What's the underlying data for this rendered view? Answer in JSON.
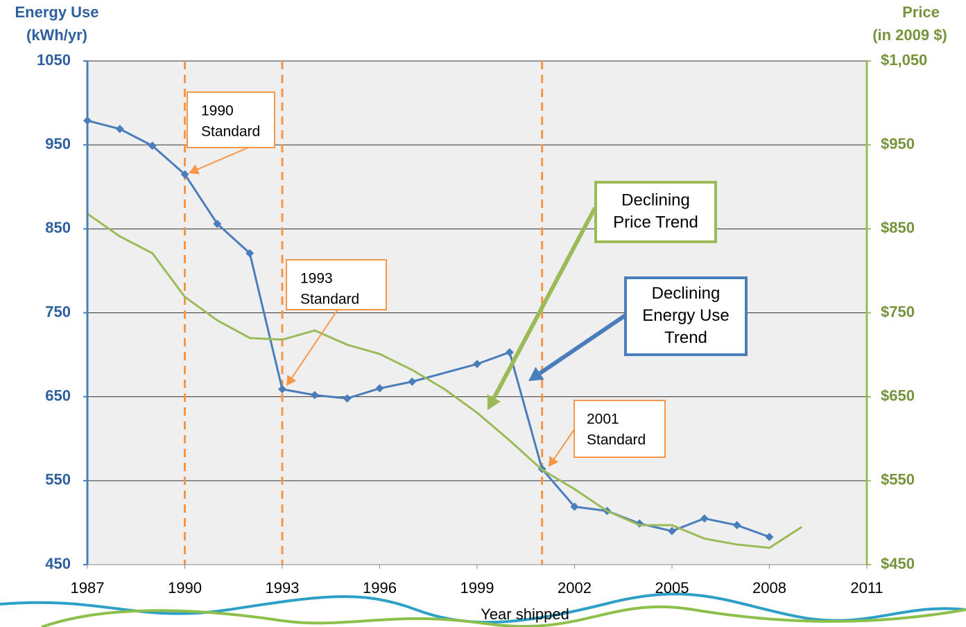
{
  "chart_data": {
    "type": "line",
    "y_label": [
      "Energy Use",
      "(kWh/yr)"
    ],
    "y2_label": [
      "Price",
      "(in 2009 $)"
    ],
    "x_label": "Year shipped",
    "xlim": [
      1987,
      2011
    ],
    "xticks": [
      1987,
      1990,
      1993,
      1996,
      1999,
      2002,
      2005,
      2008,
      2011
    ],
    "ylim": [
      450,
      1050
    ],
    "yticks": [
      450,
      550,
      650,
      750,
      850,
      950,
      1050
    ],
    "y2lim": [
      450,
      1050
    ],
    "y2ticks": [
      {
        "value": 450,
        "label": "$450"
      },
      {
        "value": 550,
        "label": "$550"
      },
      {
        "value": 650,
        "label": "$650"
      },
      {
        "value": 750,
        "label": "$750"
      },
      {
        "value": 850,
        "label": "$850"
      },
      {
        "value": 950,
        "label": "$950"
      },
      {
        "value": 1050,
        "label": "$1,050"
      }
    ],
    "grid": true,
    "series": [
      {
        "color": "#4a7ebb",
        "markers": true,
        "x": [
          1987,
          1988,
          1989,
          1990,
          1991,
          1992,
          1993,
          1994,
          1995,
          1996,
          1997,
          1999,
          2000,
          2001,
          2002,
          2003,
          2004,
          2005,
          2006,
          2007,
          2008
        ],
        "values": [
          979,
          969,
          949,
          915,
          856,
          821,
          659,
          652,
          648,
          660,
          668,
          689,
          703,
          564,
          519,
          514,
          499,
          490,
          505,
          497,
          483
        ]
      },
      {
        "color": "#9bbb59",
        "markers": false,
        "axis": "y2",
        "x": [
          1987,
          1988,
          1989,
          1990,
          1991,
          1992,
          1993,
          1994,
          1995,
          1996,
          1997,
          1998,
          1999,
          2000,
          2001,
          2002,
          2003,
          2004,
          2005,
          2006,
          2007,
          2008,
          2009
        ],
        "values": [
          868,
          841,
          821,
          769,
          741,
          720,
          718,
          729,
          712,
          701,
          682,
          659,
          631,
          598,
          563,
          540,
          514,
          497,
          497,
          481,
          474,
          470,
          495
        ]
      }
    ],
    "standards": [
      {
        "x": 1990,
        "text": [
          "1990",
          "Standard"
        ]
      },
      {
        "x": 1993,
        "text": [
          "1993",
          "Standard"
        ]
      },
      {
        "x": 2001,
        "text": [
          "2001",
          "Standard"
        ]
      }
    ],
    "annotations": [
      {
        "text": [
          "Declining",
          "Price Trend"
        ]
      },
      {
        "text": [
          "Declining",
          "Energy Use",
          "Trend"
        ]
      }
    ]
  }
}
